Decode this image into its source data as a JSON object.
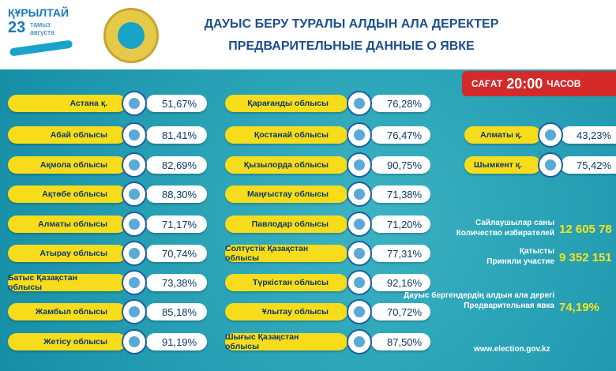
{
  "header": {
    "logo": {
      "word": "ҚҰРЫЛТАЙ",
      "day": "23",
      "month_kz": "тамыз",
      "month_ru": "августа"
    },
    "title_kz": "ДАУЫС БЕРУ ТУРАЛЫ АЛДЫН АЛА ДЕРЕКТЕР",
    "title_ru": "ПРЕДВАРИТЕЛЬНЫЕ ДАННЫЕ О ЯВКЕ"
  },
  "time_badge": {
    "kz": "САҒАТ",
    "time": "20:00",
    "ru": "ЧАСОВ"
  },
  "columns": [
    [
      {
        "name": "Астана қ.",
        "value": "51,67%"
      },
      {
        "name": "Абай облысы",
        "value": "81,41%"
      },
      {
        "name": "Ақмола облысы",
        "value": "82,69%"
      },
      {
        "name": "Ақтөбе облысы",
        "value": "88,30%"
      },
      {
        "name": "Алматы облысы",
        "value": "71,17%"
      },
      {
        "name": "Атырау облысы",
        "value": "70,74%"
      },
      {
        "name": "Батыс Қазақстан облысы",
        "value": "73,38%"
      },
      {
        "name": "Жамбыл облысы",
        "value": "85,18%"
      },
      {
        "name": "Жетісу облысы",
        "value": "91,19%"
      }
    ],
    [
      {
        "name": "Қарағанды облысы",
        "value": "76,28%"
      },
      {
        "name": "Қостанай облысы",
        "value": "76,47%"
      },
      {
        "name": "Қызылорда облысы",
        "value": "90,75%"
      },
      {
        "name": "Маңғыстау облысы",
        "value": "71,38%"
      },
      {
        "name": "Павлодар облысы",
        "value": "71,20%"
      },
      {
        "name": "Солтүстік Қазақстан облысы",
        "value": "77,31%"
      },
      {
        "name": "Түркістан облысы",
        "value": "92,16%"
      },
      {
        "name": "Ұлытау облысы",
        "value": "70,72%"
      },
      {
        "name": "Шығыс Қазақстан облысы",
        "value": "87,50%"
      }
    ],
    [
      {
        "name": "Алматы қ.",
        "value": "43,23%"
      },
      {
        "name": "Шымкент қ.",
        "value": "75,42%"
      }
    ]
  ],
  "stats": [
    {
      "kz": "Сайлаушылар саны",
      "ru": "Количество избирателей",
      "value": "12 605 78"
    },
    {
      "kz": "Қатысты",
      "ru": "Приняли участие",
      "value": "9 352 151"
    },
    {
      "kz": "Дауыс бергендердің алдын ала дерегі",
      "ru": "Предварительная явка",
      "value": "74,19%"
    }
  ],
  "website": "www.election.gov.kz"
}
